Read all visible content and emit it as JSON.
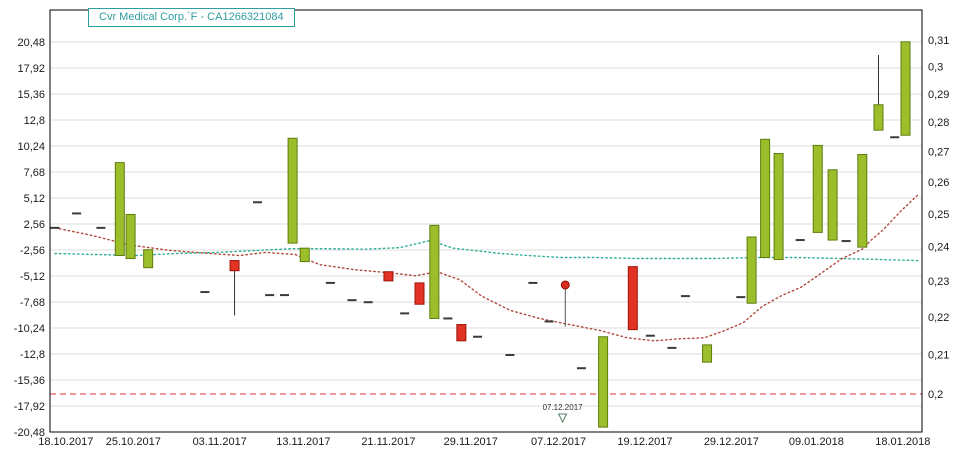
{
  "title": "Cvr Medical Corp.`F - CA1266321084",
  "colors": {
    "up_fill": "#9cbe2b",
    "up_border": "#5e7d0f",
    "down_fill": "#e23223",
    "down_border": "#9c1408",
    "flat_mark": "#3a3a3a",
    "ma_fast": "#b04a3c",
    "ma_slow": "#2fae98",
    "stop_line": "#e03030",
    "grid": "#dcdcdc",
    "frame": "#000000",
    "axis_text": "#1a1a1a",
    "title_teal": "#2f9e9e",
    "signal_dot": "#d92b1e",
    "annotation_text": "#333333",
    "triangle_stroke": "#557f66"
  },
  "chart_data": {
    "type": "bar",
    "subtype": "candlestick-percent-ohlc",
    "title": "Cvr Medical Corp.`F - CA1266321084",
    "grid": "horizontal-only",
    "legend": "none",
    "left_axis": {
      "unit": "percent-change",
      "range": [
        -20.48,
        20.48
      ],
      "ticks": [
        {
          "v": 20.48,
          "label": "20,48"
        },
        {
          "v": 17.92,
          "label": "17,92"
        },
        {
          "v": 15.36,
          "label": "15,36"
        },
        {
          "v": 12.8,
          "label": "12,8"
        },
        {
          "v": 10.24,
          "label": "10,24"
        },
        {
          "v": 7.68,
          "label": "7,68"
        },
        {
          "v": 5.12,
          "label": "5,12"
        },
        {
          "v": 2.56,
          "label": "2,56"
        },
        {
          "v": -2.56,
          "label": "-2,56"
        },
        {
          "v": -5.12,
          "label": "-5,12"
        },
        {
          "v": -7.68,
          "label": "-7,68"
        },
        {
          "v": -10.24,
          "label": "-10,24"
        },
        {
          "v": -12.8,
          "label": "-12,8"
        },
        {
          "v": -15.36,
          "label": "-15,36"
        },
        {
          "v": -17.92,
          "label": "-17,92"
        },
        {
          "v": -20.48,
          "label": "-20,48"
        }
      ]
    },
    "right_axis": {
      "unit": "price",
      "scale": "log",
      "range": [
        0.2,
        0.31
      ],
      "ticks": [
        {
          "v": 0.31,
          "label": "0,31"
        },
        {
          "v": 0.3,
          "label": "0,3"
        },
        {
          "v": 0.29,
          "label": "0,29"
        },
        {
          "v": 0.28,
          "label": "0,28"
        },
        {
          "v": 0.27,
          "label": "0,27"
        },
        {
          "v": 0.26,
          "label": "0,26"
        },
        {
          "v": 0.25,
          "label": "0,25"
        },
        {
          "v": 0.24,
          "label": "0,24"
        },
        {
          "v": 0.23,
          "label": "0,23"
        },
        {
          "v": 0.22,
          "label": "0,22"
        },
        {
          "v": 0.21,
          "label": "0,21"
        },
        {
          "v": 0.2,
          "label": "0,2"
        }
      ]
    },
    "x_axis": {
      "unit": "trading-day-index",
      "ticks": [
        {
          "d": 0.8,
          "label": "18.10.2017"
        },
        {
          "d": 5.8,
          "label": "25.10.2017"
        },
        {
          "d": 12.2,
          "label": "03.11.2017"
        },
        {
          "d": 18.4,
          "label": "13.11.2017"
        },
        {
          "d": 24.7,
          "label": "21.11.2017"
        },
        {
          "d": 30.8,
          "label": "29.11.2017"
        },
        {
          "d": 37.3,
          "label": "07.12.2017"
        },
        {
          "d": 43.7,
          "label": "19.12.2017"
        },
        {
          "d": 50.1,
          "label": "29.12.2017"
        },
        {
          "d": 56.4,
          "label": "09.01.2018"
        },
        {
          "d": 62.8,
          "label": "18.01.2018"
        }
      ]
    },
    "candles": [
      {
        "d": 4.8,
        "o": -3.1,
        "c": 8.6
      },
      {
        "d": 5.6,
        "o": -3.4,
        "c": 3.5
      },
      {
        "d": 6.9,
        "o": -4.3,
        "c": -2.5
      },
      {
        "d": 13.3,
        "o": -3.6,
        "c": -4.6,
        "l": -9.0
      },
      {
        "d": 17.6,
        "o": -1.2,
        "c": 11.0
      },
      {
        "d": 18.5,
        "o": -3.7,
        "c": -2.2
      },
      {
        "d": 24.7,
        "o": -4.7,
        "c": -5.6
      },
      {
        "d": 27.0,
        "o": -5.8,
        "c": -7.9
      },
      {
        "d": 28.1,
        "o": -9.3,
        "c": 2.3
      },
      {
        "d": 30.1,
        "o": -9.9,
        "c": -11.5
      },
      {
        "d": 40.6,
        "o": -20.0,
        "c": -11.1
      },
      {
        "d": 42.8,
        "o": -4.2,
        "c": -10.4
      },
      {
        "d": 48.3,
        "o": -13.6,
        "c": -11.9
      },
      {
        "d": 51.6,
        "o": -7.8,
        "c": 0.0
      },
      {
        "d": 52.6,
        "o": -3.3,
        "c": 10.9
      },
      {
        "d": 53.6,
        "o": -3.5,
        "c": 9.5
      },
      {
        "d": 56.5,
        "o": 0.9,
        "c": 10.3
      },
      {
        "d": 57.6,
        "o": -0.6,
        "c": 7.9
      },
      {
        "d": 59.8,
        "o": -2.0,
        "c": 9.4
      },
      {
        "d": 61.0,
        "o": 11.8,
        "c": 14.3,
        "h": 19.2
      },
      {
        "d": 63.0,
        "o": 11.3,
        "c": 20.5
      }
    ],
    "flat_days": [
      {
        "d": 0.0,
        "v": 1.8
      },
      {
        "d": 1.6,
        "v": 3.6
      },
      {
        "d": 3.4,
        "v": 1.8
      },
      {
        "d": 11.1,
        "v": -6.7
      },
      {
        "d": 15.0,
        "v": 4.7
      },
      {
        "d": 15.9,
        "v": -7.0
      },
      {
        "d": 17.0,
        "v": -7.0
      },
      {
        "d": 20.4,
        "v": -5.8
      },
      {
        "d": 22.0,
        "v": -7.5
      },
      {
        "d": 23.2,
        "v": -7.7
      },
      {
        "d": 25.9,
        "v": -8.8
      },
      {
        "d": 29.1,
        "v": -9.3
      },
      {
        "d": 31.3,
        "v": -11.1
      },
      {
        "d": 33.7,
        "v": -12.9
      },
      {
        "d": 35.4,
        "v": -5.8
      },
      {
        "d": 36.6,
        "v": -9.6
      },
      {
        "d": 39.0,
        "v": -14.2
      },
      {
        "d": 44.1,
        "v": -11.0
      },
      {
        "d": 45.7,
        "v": -12.2
      },
      {
        "d": 46.7,
        "v": -7.1
      },
      {
        "d": 50.8,
        "v": -7.2
      },
      {
        "d": 55.2,
        "v": -0.6
      },
      {
        "d": 58.6,
        "v": -0.8
      },
      {
        "d": 62.2,
        "v": 11.1
      }
    ],
    "signal_marker": {
      "d": 37.8,
      "v": -6.0,
      "tail_v": -10.1
    },
    "annotation": {
      "d": 37.6,
      "label": "07.12.2017",
      "marker": "triangle-down-outline"
    },
    "stop_line": {
      "price": 0.2,
      "style": "dashed-red"
    },
    "ma_slow_teal": [
      [
        0,
        -2.9
      ],
      [
        3,
        -3.0
      ],
      [
        6,
        -3.1
      ],
      [
        9,
        -2.9
      ],
      [
        12,
        -2.8
      ],
      [
        15,
        -2.6
      ],
      [
        17.5,
        -2.3
      ],
      [
        20,
        -2.3
      ],
      [
        23,
        -2.4
      ],
      [
        25.5,
        -2.1
      ],
      [
        27.8,
        -0.7
      ],
      [
        29.5,
        -2.2
      ],
      [
        31,
        -2.6
      ],
      [
        33,
        -2.9
      ],
      [
        35,
        -3.1
      ],
      [
        37.5,
        -3.3
      ],
      [
        40,
        -3.3
      ],
      [
        43,
        -3.4
      ],
      [
        46,
        -3.4
      ],
      [
        49,
        -3.4
      ],
      [
        52,
        -3.3
      ],
      [
        55,
        -3.3
      ],
      [
        58,
        -3.4
      ],
      [
        61,
        -3.5
      ],
      [
        64,
        -3.6
      ]
    ],
    "ma_fast_red": [
      [
        0,
        1.8
      ],
      [
        2.6,
        0.4
      ],
      [
        5.6,
        -1.6
      ],
      [
        8.5,
        -2.6
      ],
      [
        11.5,
        -2.9
      ],
      [
        13.7,
        -3.1
      ],
      [
        15.6,
        -2.8
      ],
      [
        17.8,
        -3.0
      ],
      [
        19.6,
        -4.0
      ],
      [
        22.2,
        -4.5
      ],
      [
        24.8,
        -4.8
      ],
      [
        26.7,
        -5.1
      ],
      [
        28.3,
        -4.7
      ],
      [
        30,
        -5.5
      ],
      [
        31.6,
        -7.1
      ],
      [
        33.7,
        -8.5
      ],
      [
        35.9,
        -9.3
      ],
      [
        38.1,
        -9.9
      ],
      [
        40.4,
        -10.5
      ],
      [
        42.4,
        -11.2
      ],
      [
        44.4,
        -11.5
      ],
      [
        46.3,
        -11.3
      ],
      [
        48.1,
        -11.2
      ],
      [
        49.6,
        -10.5
      ],
      [
        51,
        -9.7
      ],
      [
        52.4,
        -8.1
      ],
      [
        53.9,
        -7.0
      ],
      [
        55.3,
        -6.2
      ],
      [
        56.8,
        -4.8
      ],
      [
        58.3,
        -3.4
      ],
      [
        59.8,
        -2.4
      ],
      [
        60.5,
        -0.5
      ],
      [
        61.3,
        1.3
      ],
      [
        62.7,
        3.9
      ],
      [
        63.9,
        5.4
      ]
    ]
  }
}
